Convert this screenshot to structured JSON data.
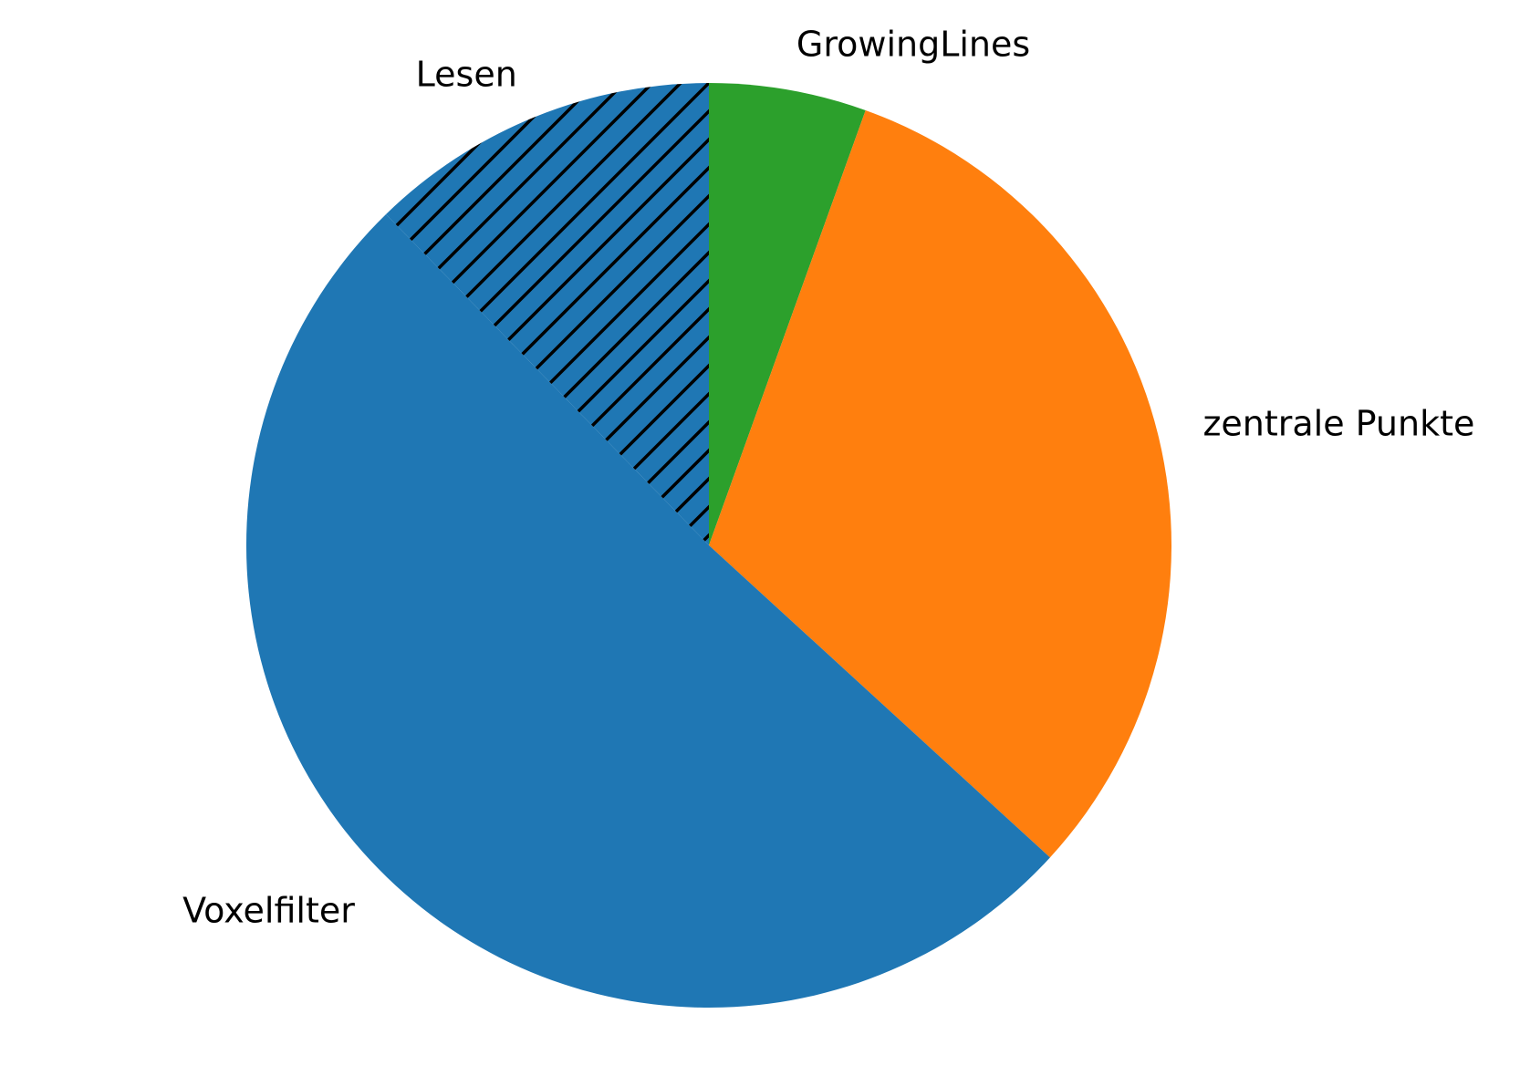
{
  "chart_data": {
    "type": "pie",
    "title": "",
    "start_angle_deg": 90,
    "direction": "clockwise",
    "slices": [
      {
        "label": "GrowingLines",
        "value": 5.5,
        "color": "#2ca02c",
        "hatch": false
      },
      {
        "label": "zentrale Punkte",
        "value": 31.3,
        "color": "#ff7f0e",
        "hatch": false
      },
      {
        "label": "Voxelfilter",
        "value": 50.9,
        "color": "#1f77b4",
        "hatch": false
      },
      {
        "label": "Lesen",
        "value": 12.3,
        "color": "#1f77b4",
        "hatch": true
      }
    ]
  }
}
